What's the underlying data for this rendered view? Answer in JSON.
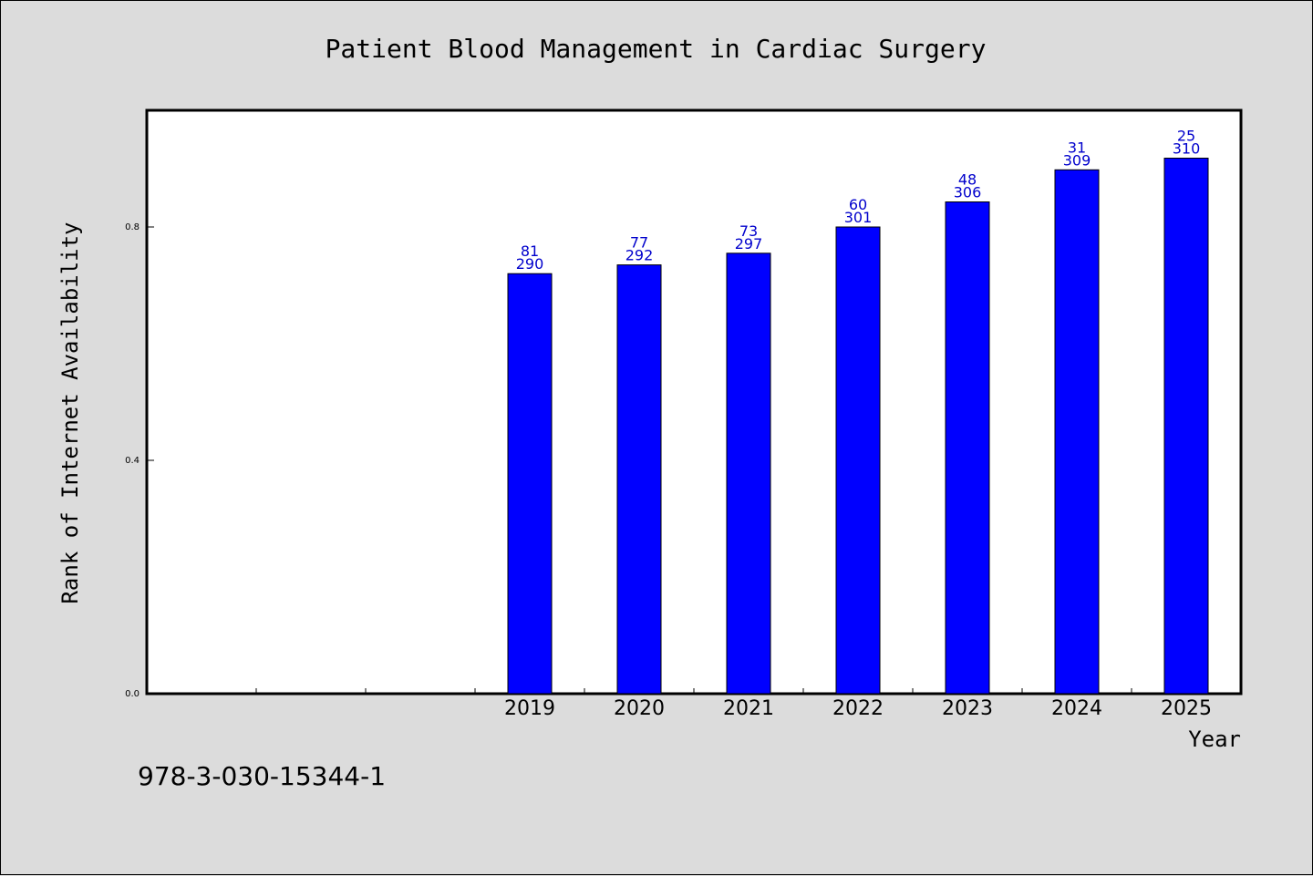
{
  "chart_data": {
    "type": "bar",
    "title": "Patient Blood Management in Cardiac Surgery",
    "ylabel": "Rank of Internet Availability",
    "xlabel": "Year",
    "categories": [
      "",
      "",
      "",
      "2019",
      "2020",
      "2021",
      "2022",
      "2023",
      "2024",
      "2025"
    ],
    "values": [
      null,
      null,
      null,
      0.72,
      0.735,
      0.755,
      0.8,
      0.843,
      0.898,
      0.918
    ],
    "bar_labels_top": [
      "",
      "",
      "",
      "81",
      "77",
      "73",
      "60",
      "48",
      "31",
      "25"
    ],
    "bar_labels_bottom": [
      "",
      "",
      "",
      "290",
      "292",
      "297",
      "301",
      "306",
      "309",
      "310"
    ],
    "y_ticks": [
      0.0,
      0.4,
      0.8
    ],
    "y_tick_labels": [
      "0.0",
      "0.4",
      "0.8"
    ],
    "ylim": [
      0,
      1.0
    ],
    "grid": false,
    "colors": {
      "bar": "#0000ff",
      "bar_label": "#0000cc",
      "background": "#dcdcdc",
      "plot_background": "#ffffff"
    }
  },
  "footnote": "978-3-030-15344-1"
}
